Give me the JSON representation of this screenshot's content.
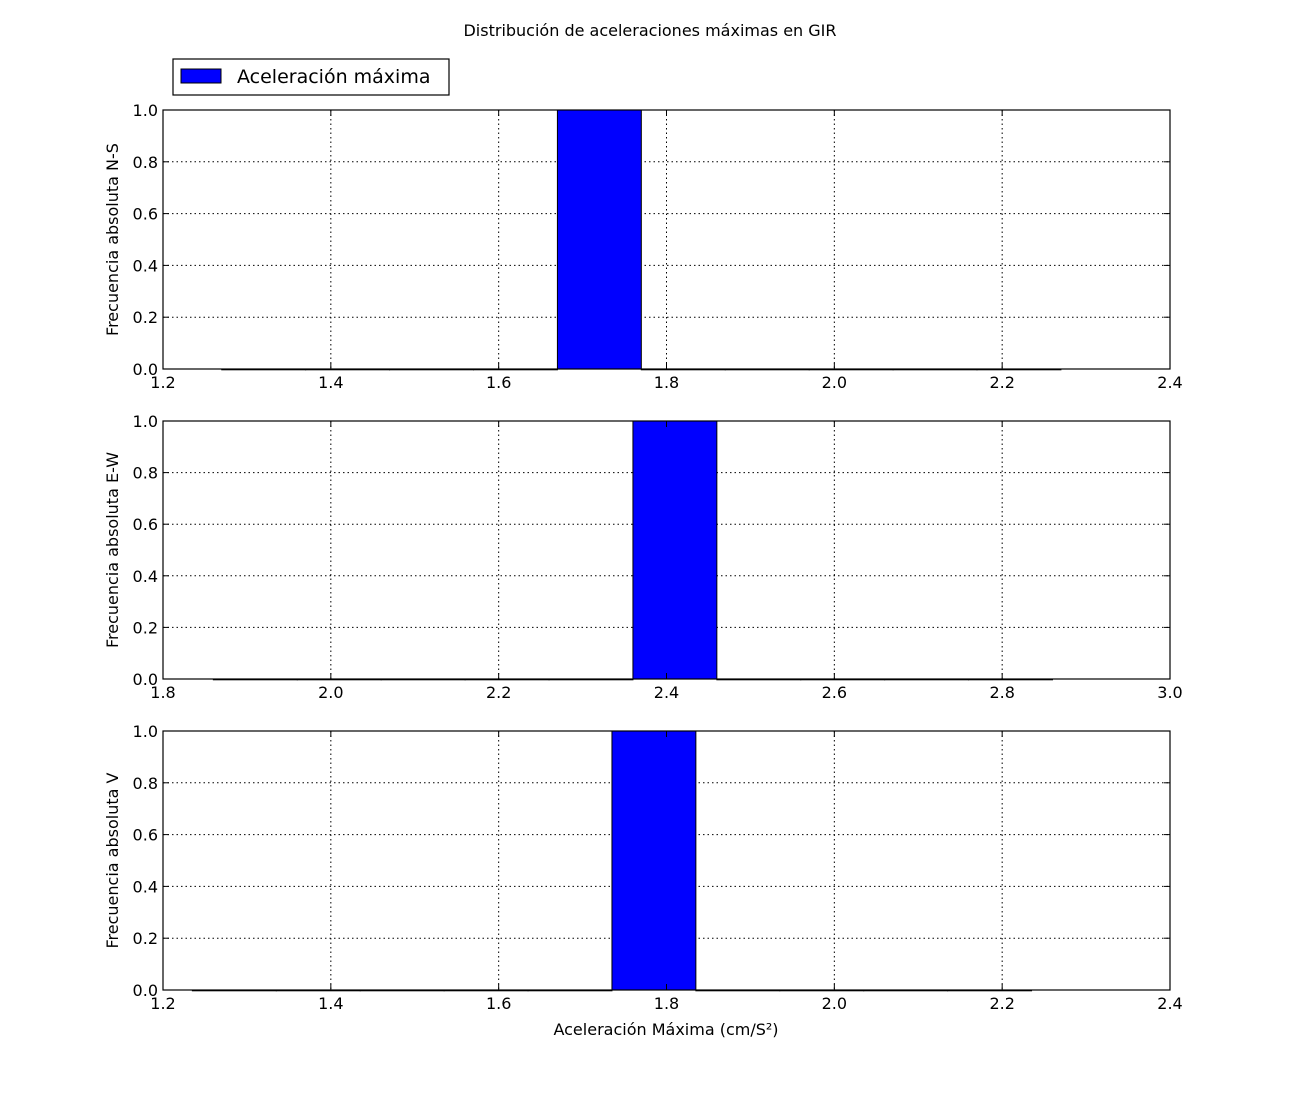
{
  "chart_data": {
    "type": "bar",
    "title": "Distribución de aceleraciones máximas en GIR",
    "legend": {
      "position": "top-left",
      "entries": [
        "Aceleración máxima"
      ]
    },
    "grid": true,
    "colors": {
      "bar_fill": "#0000ff",
      "bar_edge": "#000000"
    },
    "subplots": [
      {
        "ylabel": "Frecuencia absoluta N-S",
        "xlabel": "",
        "xlim": [
          1.2,
          2.4
        ],
        "ylim": [
          0.0,
          1.0
        ],
        "xticks": [
          1.2,
          1.4,
          1.6,
          1.8,
          2.0,
          2.2,
          2.4
        ],
        "xtick_labels": [
          "1.2",
          "1.4",
          "1.6",
          "1.8",
          "2.0",
          "2.2",
          "2.4"
        ],
        "yticks": [
          0.0,
          0.2,
          0.4,
          0.6,
          0.8,
          1.0
        ],
        "ytick_labels": [
          "0.0",
          "0.2",
          "0.4",
          "0.6",
          "0.8",
          "1.0"
        ],
        "bins": [
          {
            "x0": 1.27,
            "x1": 1.37,
            "value": 0
          },
          {
            "x0": 1.37,
            "x1": 1.47,
            "value": 0
          },
          {
            "x0": 1.47,
            "x1": 1.57,
            "value": 0
          },
          {
            "x0": 1.57,
            "x1": 1.67,
            "value": 0
          },
          {
            "x0": 1.67,
            "x1": 1.77,
            "value": 1
          },
          {
            "x0": 1.77,
            "x1": 1.87,
            "value": 0
          },
          {
            "x0": 1.87,
            "x1": 1.97,
            "value": 0
          },
          {
            "x0": 1.97,
            "x1": 2.07,
            "value": 0
          },
          {
            "x0": 2.07,
            "x1": 2.17,
            "value": 0
          },
          {
            "x0": 2.17,
            "x1": 2.27,
            "value": 0
          }
        ]
      },
      {
        "ylabel": "Frecuencia absoluta E-W",
        "xlabel": "",
        "xlim": [
          1.8,
          3.0
        ],
        "ylim": [
          0.0,
          1.0
        ],
        "xticks": [
          1.8,
          2.0,
          2.2,
          2.4,
          2.6,
          2.8,
          3.0
        ],
        "xtick_labels": [
          "1.8",
          "2.0",
          "2.2",
          "2.4",
          "2.6",
          "2.8",
          "3.0"
        ],
        "yticks": [
          0.0,
          0.2,
          0.4,
          0.6,
          0.8,
          1.0
        ],
        "ytick_labels": [
          "0.0",
          "0.2",
          "0.4",
          "0.6",
          "0.8",
          "1.0"
        ],
        "bins": [
          {
            "x0": 1.86,
            "x1": 1.96,
            "value": 0
          },
          {
            "x0": 1.96,
            "x1": 2.06,
            "value": 0
          },
          {
            "x0": 2.06,
            "x1": 2.16,
            "value": 0
          },
          {
            "x0": 2.16,
            "x1": 2.26,
            "value": 0
          },
          {
            "x0": 2.26,
            "x1": 2.36,
            "value": 0
          },
          {
            "x0": 2.36,
            "x1": 2.46,
            "value": 1
          },
          {
            "x0": 2.46,
            "x1": 2.56,
            "value": 0
          },
          {
            "x0": 2.56,
            "x1": 2.66,
            "value": 0
          },
          {
            "x0": 2.66,
            "x1": 2.76,
            "value": 0
          },
          {
            "x0": 2.76,
            "x1": 2.86,
            "value": 0
          }
        ]
      },
      {
        "ylabel": "Frecuencia absoluta V",
        "xlabel": "Aceleración Máxima (cm/S²)",
        "xlim": [
          1.2,
          2.4
        ],
        "ylim": [
          0.0,
          1.0
        ],
        "xticks": [
          1.2,
          1.4,
          1.6,
          1.8,
          2.0,
          2.2,
          2.4
        ],
        "xtick_labels": [
          "1.2",
          "1.4",
          "1.6",
          "1.8",
          "2.0",
          "2.2",
          "2.4"
        ],
        "yticks": [
          0.0,
          0.2,
          0.4,
          0.6,
          0.8,
          1.0
        ],
        "ytick_labels": [
          "0.0",
          "0.2",
          "0.4",
          "0.6",
          "0.8",
          "1.0"
        ],
        "bins": [
          {
            "x0": 1.235,
            "x1": 1.335,
            "value": 0
          },
          {
            "x0": 1.335,
            "x1": 1.435,
            "value": 0
          },
          {
            "x0": 1.435,
            "x1": 1.535,
            "value": 0
          },
          {
            "x0": 1.535,
            "x1": 1.635,
            "value": 0
          },
          {
            "x0": 1.635,
            "x1": 1.735,
            "value": 0
          },
          {
            "x0": 1.735,
            "x1": 1.835,
            "value": 1
          },
          {
            "x0": 1.835,
            "x1": 1.935,
            "value": 0
          },
          {
            "x0": 1.935,
            "x1": 2.035,
            "value": 0
          },
          {
            "x0": 2.035,
            "x1": 2.135,
            "value": 0
          },
          {
            "x0": 2.135,
            "x1": 2.235,
            "value": 0
          }
        ]
      }
    ]
  }
}
